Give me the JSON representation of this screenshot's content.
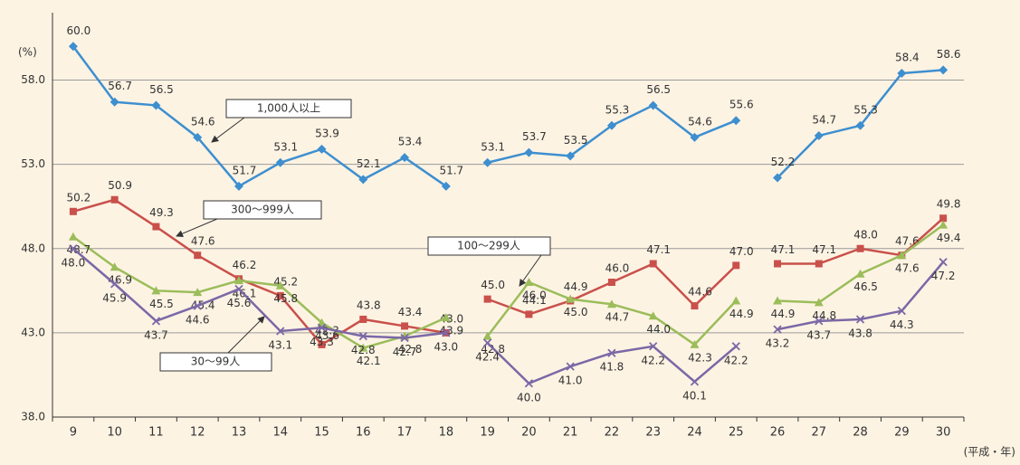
{
  "chart_data": {
    "type": "line",
    "y_unit": "(%)",
    "x_label": "(平成・年)",
    "categories": [
      "9",
      "10",
      "11",
      "12",
      "13",
      "14",
      "15",
      "16",
      "17",
      "18",
      "19",
      "20",
      "21",
      "22",
      "23",
      "24",
      "25",
      "26",
      "27",
      "28",
      "29",
      "30"
    ],
    "breaks_after": [
      "18",
      "25"
    ],
    "ylim": [
      38,
      62
    ],
    "yticks": [
      {
        "value": 38,
        "label": "38.0"
      },
      {
        "value": 43,
        "label": "43.0"
      },
      {
        "value": 48,
        "label": "48.0"
      },
      {
        "value": 53,
        "label": "53.0"
      },
      {
        "value": 58,
        "label": "58.0"
      }
    ],
    "grid": true,
    "series": [
      {
        "name": "1,000人以上",
        "color": "#3d8fcf",
        "marker": "diamond",
        "values": [
          60.0,
          56.7,
          56.5,
          54.6,
          51.7,
          53.1,
          53.9,
          52.1,
          53.4,
          51.7,
          53.1,
          53.7,
          53.5,
          55.3,
          56.5,
          54.6,
          55.6,
          52.2,
          54.7,
          55.3,
          58.4,
          58.6
        ],
        "value_labels": [
          "60.0",
          "56.7",
          "56.5",
          "54.6",
          "51.7",
          "53.1",
          "53.9",
          "52.1",
          "53.4",
          "51.7",
          "53.1",
          "53.7",
          "53.5",
          "55.3",
          "56.5",
          "54.6",
          "55.6",
          "52.2",
          "54.7",
          "55.3",
          "58.4",
          "58.6"
        ]
      },
      {
        "name": "300～999人",
        "color": "#c9504b",
        "marker": "square",
        "values": [
          50.2,
          50.9,
          49.3,
          47.6,
          46.2,
          45.2,
          42.3,
          43.8,
          43.4,
          43.0,
          45.0,
          44.1,
          44.9,
          46.0,
          47.1,
          44.6,
          47.0,
          47.1,
          47.1,
          48.0,
          47.6,
          49.8
        ],
        "value_labels": [
          "50.2",
          "50.9",
          "49.3",
          "47.6",
          "46.2",
          "45.2",
          "42.3",
          "43.8",
          "43.4",
          "43.0",
          "45.0",
          "44.1",
          "44.9",
          "46.0",
          "47.1",
          "44.6",
          "47.0",
          "47.1",
          "47.1",
          "48.0",
          "47.6",
          "49.8"
        ]
      },
      {
        "name": "100～299人",
        "color": "#9bbd5a",
        "marker": "triangle",
        "values": [
          48.7,
          46.9,
          45.5,
          45.4,
          46.1,
          45.8,
          43.6,
          42.1,
          42.8,
          43.9,
          42.8,
          46.0,
          45.0,
          44.7,
          44.0,
          42.3,
          44.9,
          44.9,
          44.8,
          46.5,
          47.6,
          49.4
        ],
        "value_labels": [
          "48.7",
          "46.9",
          "45.5",
          "45.4",
          "46.1",
          "45.8",
          "43.6",
          "42.1",
          "42.8",
          "43.9",
          "42.8",
          "46.0",
          "45.0",
          "44.7",
          "44.0",
          "42.3",
          "44.9",
          "44.9",
          "44.8",
          "46.5",
          "47.6",
          "49.4"
        ]
      },
      {
        "name": "30～99人",
        "color": "#7b68a6",
        "marker": "x",
        "values": [
          48.0,
          45.9,
          43.7,
          44.6,
          45.6,
          43.1,
          43.3,
          42.8,
          42.7,
          43.0,
          42.4,
          40.0,
          41.0,
          41.8,
          42.2,
          40.1,
          42.2,
          43.2,
          43.7,
          43.8,
          44.3,
          47.2
        ],
        "value_labels": [
          "48.0",
          "45.9",
          "43.7",
          "44.6",
          "45.6",
          "43.1",
          "43.3",
          "42.8",
          "42.7",
          "43.0",
          "42.4",
          "40.0",
          "41.0",
          "41.8",
          "42.2",
          "40.1",
          "42.2",
          "43.2",
          "43.7",
          "43.8",
          "44.3",
          "47.2"
        ]
      }
    ]
  }
}
